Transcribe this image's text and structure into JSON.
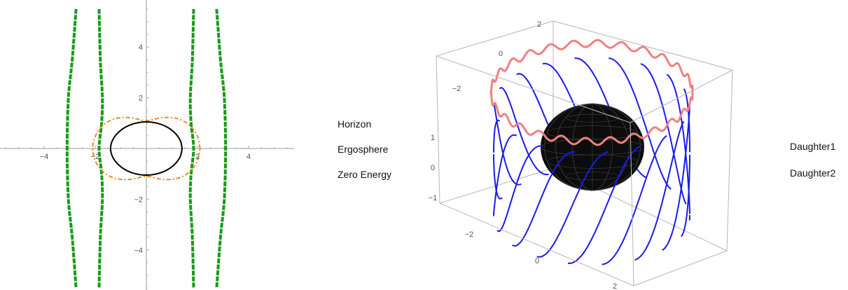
{
  "chart_data": [
    {
      "type": "line",
      "xlim": [
        -5.5,
        5.5
      ],
      "ylim": [
        -5.5,
        5.5
      ],
      "xticks": [
        "−4",
        "−2",
        "2",
        "4"
      ],
      "yticks": [
        "4",
        "2",
        "−2",
        "−4"
      ],
      "grid": false,
      "legend_position": "right",
      "series": [
        {
          "name": "Horizon",
          "color": "#000000",
          "style": "solid",
          "shape": "closed ellipse",
          "points": [
            [
              1.4,
              0
            ],
            [
              1.33,
              0.31
            ],
            [
              1.14,
              0.59
            ],
            [
              0.84,
              0.83
            ],
            [
              0.45,
              0.99
            ],
            [
              0,
              1.05
            ],
            [
              -0.45,
              0.99
            ],
            [
              -0.84,
              0.83
            ],
            [
              -1.14,
              0.59
            ],
            [
              -1.33,
              0.31
            ],
            [
              -1.4,
              0
            ],
            [
              -1.33,
              -0.31
            ],
            [
              -1.14,
              -0.59
            ],
            [
              -0.84,
              -0.83
            ],
            [
              -0.45,
              -0.99
            ],
            [
              0,
              -1.05
            ],
            [
              0.45,
              -0.99
            ],
            [
              0.84,
              -0.83
            ],
            [
              1.14,
              -0.59
            ],
            [
              1.33,
              -0.31
            ],
            [
              1.4,
              0
            ]
          ]
        },
        {
          "name": "Ergosphere",
          "color": "#ee8a1a",
          "style": "dash-dot",
          "shape": "closed peanut curve",
          "points": [
            [
              2.1,
              0
            ],
            [
              2.0,
              0.48
            ],
            [
              1.71,
              0.9
            ],
            [
              1.25,
              1.17
            ],
            [
              0.65,
              1.22
            ],
            [
              0,
              1.1
            ],
            [
              -0.65,
              1.22
            ],
            [
              -1.25,
              1.17
            ],
            [
              -1.71,
              0.9
            ],
            [
              -2.0,
              0.48
            ],
            [
              -2.1,
              0
            ],
            [
              -2.0,
              -0.48
            ],
            [
              -1.71,
              -0.9
            ],
            [
              -1.25,
              -1.17
            ],
            [
              -0.65,
              -1.22
            ],
            [
              0,
              -1.1
            ],
            [
              0.65,
              -1.22
            ],
            [
              1.25,
              -1.17
            ],
            [
              1.71,
              -0.9
            ],
            [
              2.0,
              -0.48
            ],
            [
              2.1,
              0
            ]
          ]
        },
        {
          "name": "Zero Energy",
          "color": "#1a9a1a",
          "style": "dashed",
          "shape": "four near-vertical curves",
          "curves": [
            [
              [
                -2.75,
                5.5
              ],
              [
                -2.9,
                3.5
              ],
              [
                -3.05,
                2.0
              ],
              [
                -3.1,
                0
              ],
              [
                -3.05,
                -2.0
              ],
              [
                -2.9,
                -3.5
              ],
              [
                -2.75,
                -5.5
              ]
            ],
            [
              [
                -1.85,
                5.5
              ],
              [
                -1.8,
                3.5
              ],
              [
                -1.72,
                2.0
              ],
              [
                -1.75,
                1.0
              ],
              [
                -1.85,
                0
              ],
              [
                -1.75,
                -1.0
              ],
              [
                -1.72,
                -2.0
              ],
              [
                -1.8,
                -3.5
              ],
              [
                -1.85,
                -5.5
              ]
            ],
            [
              [
                1.85,
                5.5
              ],
              [
                1.8,
                3.5
              ],
              [
                1.72,
                2.0
              ],
              [
                1.75,
                1.0
              ],
              [
                1.85,
                0
              ],
              [
                1.75,
                -1.0
              ],
              [
                1.72,
                -2.0
              ],
              [
                1.8,
                -3.5
              ],
              [
                1.85,
                -5.5
              ]
            ],
            [
              [
                2.75,
                5.5
              ],
              [
                2.9,
                3.5
              ],
              [
                3.05,
                2.0
              ],
              [
                3.1,
                0
              ],
              [
                3.05,
                -2.0
              ],
              [
                2.9,
                -3.5
              ],
              [
                2.75,
                -5.5
              ]
            ]
          ]
        }
      ]
    },
    {
      "type": "3d-line",
      "box_ticks": {
        "top_left": [
          "2",
          "0",
          "−2"
        ],
        "left_vertical": [
          "1",
          "0",
          "−1"
        ],
        "bottom": [
          "−2",
          "0",
          "2"
        ]
      },
      "sphere": {
        "color": "#0c0c0c",
        "radius": 1
      },
      "legend_position": "right",
      "series": [
        {
          "name": "Daughter1",
          "color": "#f08080",
          "orbit_radius": 2.1,
          "height": 0.3,
          "wobble": 0.08,
          "oscillations": 26
        },
        {
          "name": "Daughter2",
          "color": "#1a1aee",
          "orbit_radius": 2.1,
          "z_range": [
            -1.4,
            0.9
          ],
          "crossings": 18
        }
      ]
    }
  ]
}
